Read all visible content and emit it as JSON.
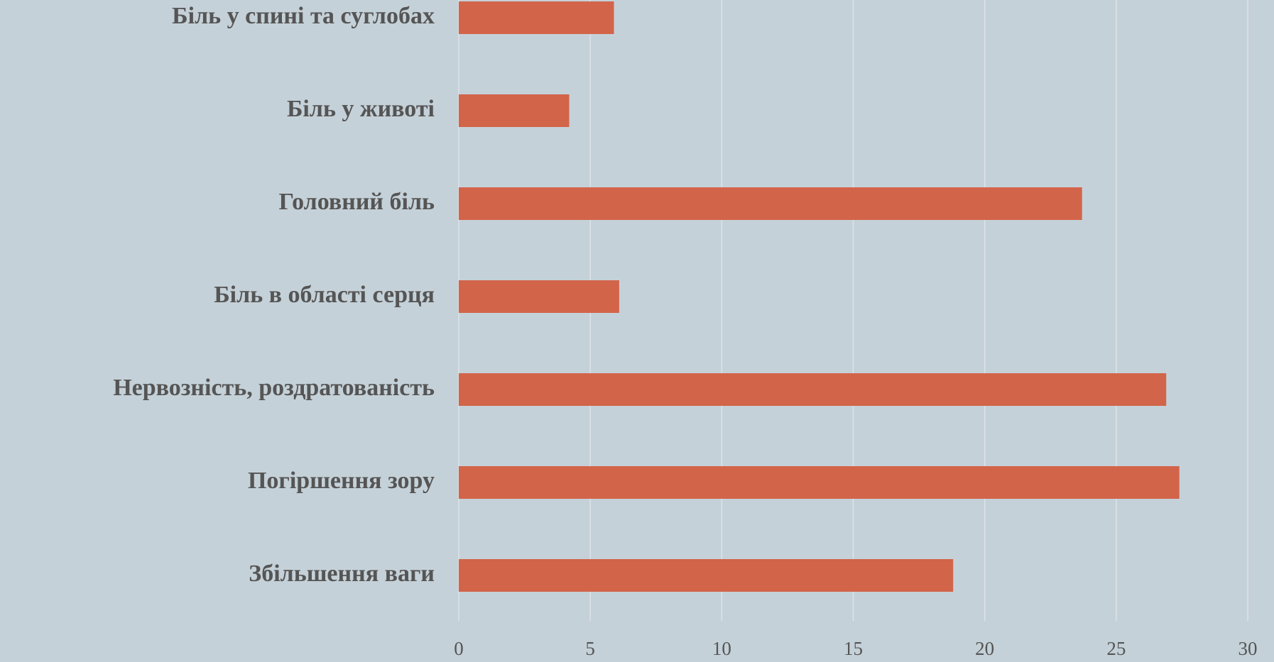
{
  "chart_data": {
    "type": "bar",
    "orientation": "horizontal",
    "categories": [
      "Біль у спині та суглобах",
      "Біль у животі",
      "Головний біль",
      "Біль в області серця",
      "Нервозність, роздратованість",
      "Погіршення зору",
      "Збільшення ваги"
    ],
    "values": [
      5.9,
      4.2,
      23.7,
      6.1,
      26.9,
      27.4,
      18.8
    ],
    "color": "#d2644a",
    "xlim": [
      0,
      30
    ],
    "xticks": [
      0,
      5,
      10,
      15,
      20,
      25,
      30
    ],
    "grid": true
  }
}
